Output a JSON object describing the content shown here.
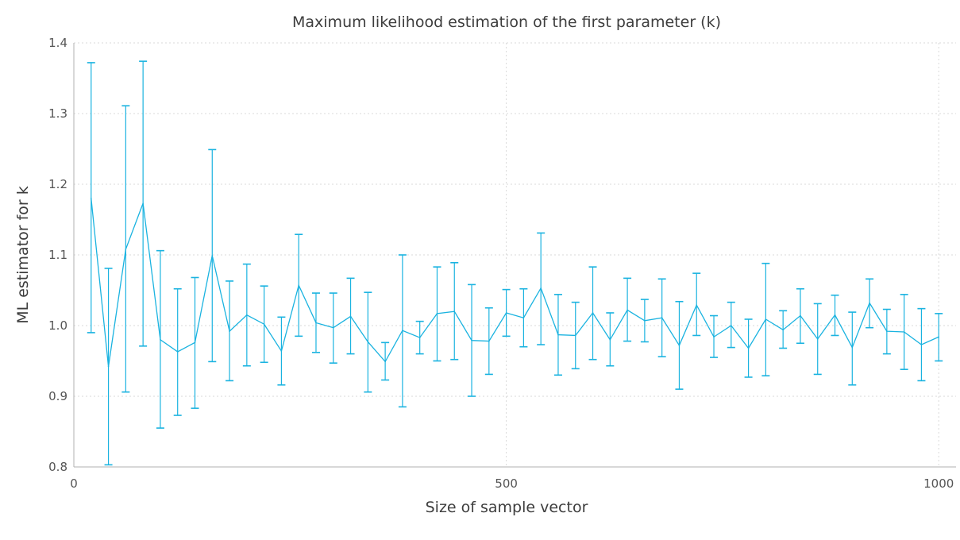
{
  "chart_data": {
    "type": "line",
    "title": "Maximum likelihood estimation of the first parameter (k)",
    "xlabel": "Size of sample vector",
    "ylabel": "ML estimator for k",
    "xlim": [
      0,
      1020
    ],
    "ylim": [
      0.8,
      1.4
    ],
    "xticks": [
      0,
      500,
      1000
    ],
    "yticks": [
      0.8,
      0.9,
      1.0,
      1.1,
      1.2,
      1.3,
      1.4
    ],
    "grid": true,
    "color": "#1ab3e0",
    "series": [
      {
        "x": [
          20,
          40,
          60,
          80,
          100,
          120,
          140,
          160,
          180,
          200,
          220,
          240,
          260,
          280,
          300,
          320,
          340,
          360,
          380,
          400,
          420,
          440,
          460,
          480,
          500,
          520,
          540,
          560,
          580,
          600,
          620,
          640,
          660,
          680,
          700,
          720,
          740,
          760,
          780,
          800,
          820,
          840,
          860,
          880,
          900,
          920,
          940,
          960,
          980,
          1000
        ],
        "y": [
          1.18,
          0.942,
          1.108,
          1.173,
          0.98,
          0.963,
          0.976,
          1.099,
          0.992,
          1.015,
          1.002,
          0.964,
          1.057,
          1.004,
          0.997,
          1.013,
          0.977,
          0.949,
          0.993,
          0.983,
          1.017,
          1.02,
          0.979,
          0.978,
          1.018,
          1.011,
          1.053,
          0.987,
          0.986,
          1.018,
          0.98,
          1.022,
          1.007,
          1.011,
          0.972,
          1.029,
          0.984,
          1.0,
          0.968,
          1.009,
          0.994,
          1.014,
          0.981,
          1.015,
          0.969,
          1.032,
          0.992,
          0.991,
          0.973,
          0.984
        ],
        "lower": [
          0.99,
          0.803,
          0.906,
          0.971,
          0.855,
          0.873,
          0.883,
          0.949,
          0.922,
          0.943,
          0.948,
          0.916,
          0.985,
          0.962,
          0.947,
          0.96,
          0.906,
          0.923,
          0.885,
          0.96,
          0.95,
          0.952,
          0.9,
          0.931,
          0.985,
          0.97,
          0.973,
          0.93,
          0.939,
          0.952,
          0.943,
          0.978,
          0.977,
          0.956,
          0.91,
          0.986,
          0.955,
          0.969,
          0.927,
          0.929,
          0.968,
          0.975,
          0.931,
          0.986,
          0.916,
          0.997,
          0.96,
          0.938,
          0.922,
          0.95
        ],
        "upper": [
          1.372,
          1.081,
          1.311,
          1.374,
          1.106,
          1.052,
          1.068,
          1.249,
          1.063,
          1.087,
          1.056,
          1.012,
          1.129,
          1.046,
          1.046,
          1.067,
          1.047,
          0.976,
          1.1,
          1.006,
          1.083,
          1.089,
          1.058,
          1.025,
          1.051,
          1.052,
          1.131,
          1.044,
          1.033,
          1.083,
          1.018,
          1.067,
          1.037,
          1.066,
          1.034,
          1.074,
          1.014,
          1.033,
          1.009,
          1.088,
          1.021,
          1.052,
          1.031,
          1.043,
          1.019,
          1.066,
          1.023,
          1.044,
          1.024,
          1.017
        ]
      }
    ]
  }
}
